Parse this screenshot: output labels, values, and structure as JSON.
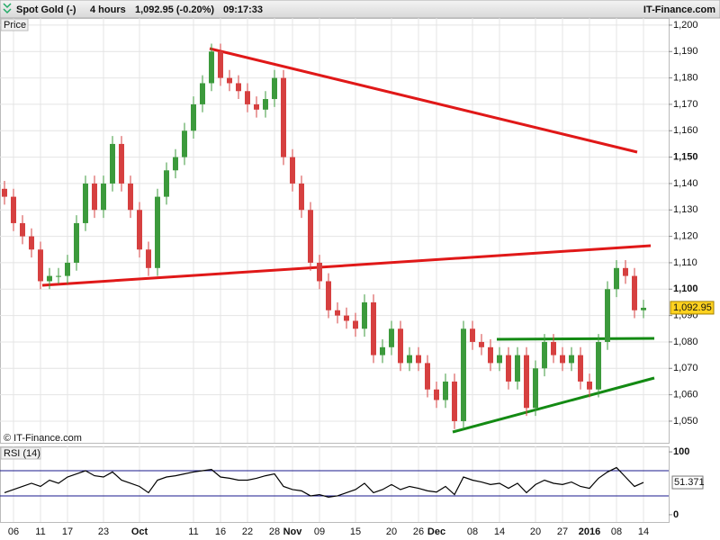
{
  "header": {
    "instrument": "Spot Gold (-)",
    "interval": "4 hours",
    "quote": "1,092.95 (-0.20%)",
    "time": "09:17:33",
    "brand": "IT-Finance.com"
  },
  "chart_data": [
    {
      "type": "candlestick",
      "label": "Price",
      "watermark": "© IT-Finance.com",
      "categories": [
        null,
        "06",
        null,
        null,
        "11",
        null,
        null,
        "17",
        null,
        null,
        null,
        "23",
        null,
        null,
        null,
        "Oct",
        null,
        null,
        null,
        null,
        null,
        "11",
        null,
        null,
        "16",
        null,
        null,
        "22",
        null,
        null,
        "28",
        null,
        "Nov",
        null,
        null,
        "09",
        null,
        null,
        null,
        "15",
        null,
        null,
        null,
        "20",
        null,
        null,
        "26",
        null,
        "Dec",
        null,
        null,
        null,
        "08",
        null,
        null,
        "14",
        null,
        null,
        null,
        "20",
        null,
        null,
        "27",
        null,
        null,
        "2016",
        null,
        null,
        "08",
        null,
        null,
        "14"
      ],
      "open": [
        1138,
        1135,
        1125,
        1120,
        1115,
        1103,
        1105,
        1105,
        1110,
        1125,
        1140,
        1130,
        1140,
        1155,
        1140,
        1130,
        1115,
        1108,
        1135,
        1145,
        1150,
        1160,
        1170,
        1178,
        1190,
        1180,
        1178,
        1175,
        1170,
        1168,
        1172,
        1180,
        1150,
        1140,
        1130,
        1110,
        1103,
        1092,
        1090,
        1088,
        1085,
        1095,
        1075,
        1078,
        1085,
        1072,
        1075,
        1072,
        1062,
        1058,
        1065,
        1050,
        1085,
        1080,
        1078,
        1072,
        1075,
        1065,
        1075,
        1055,
        1070,
        1080,
        1075,
        1072,
        1075,
        1065,
        1062,
        1080,
        1100,
        1108,
        1105,
        1092
      ],
      "high": [
        1141,
        1138,
        1128,
        1123,
        1118,
        1108,
        1108,
        1113,
        1128,
        1143,
        1143,
        1143,
        1158,
        1158,
        1143,
        1133,
        1118,
        1138,
        1148,
        1153,
        1163,
        1173,
        1181,
        1193,
        1193,
        1183,
        1181,
        1178,
        1173,
        1175,
        1183,
        1183,
        1153,
        1143,
        1133,
        1113,
        1106,
        1095,
        1093,
        1091,
        1098,
        1098,
        1081,
        1088,
        1088,
        1078,
        1078,
        1075,
        1065,
        1068,
        1068,
        1088,
        1088,
        1083,
        1081,
        1078,
        1078,
        1078,
        1078,
        1073,
        1083,
        1083,
        1078,
        1078,
        1078,
        1068,
        1083,
        1103,
        1111,
        1111,
        1108,
        1095.95
      ],
      "low": [
        1132,
        1122,
        1117,
        1112,
        1100,
        1100,
        1102,
        1102,
        1107,
        1122,
        1127,
        1127,
        1137,
        1137,
        1127,
        1112,
        1105,
        1105,
        1132,
        1142,
        1147,
        1157,
        1167,
        1175,
        1177,
        1175,
        1172,
        1167,
        1165,
        1165,
        1169,
        1147,
        1137,
        1127,
        1107,
        1100,
        1089,
        1087,
        1085,
        1082,
        1082,
        1072,
        1072,
        1075,
        1069,
        1069,
        1069,
        1059,
        1055,
        1055,
        1047,
        1047,
        1077,
        1075,
        1069,
        1069,
        1062,
        1062,
        1052,
        1052,
        1067,
        1072,
        1069,
        1069,
        1062,
        1059,
        1059,
        1077,
        1097,
        1102,
        1089,
        1089
      ],
      "close": [
        1135,
        1125,
        1120,
        1115,
        1103,
        1105,
        1105,
        1110,
        1125,
        1140,
        1130,
        1140,
        1155,
        1140,
        1130,
        1115,
        1108,
        1135,
        1145,
        1150,
        1160,
        1170,
        1178,
        1190,
        1180,
        1178,
        1175,
        1170,
        1168,
        1172,
        1180,
        1150,
        1140,
        1130,
        1110,
        1103,
        1092,
        1090,
        1088,
        1085,
        1095,
        1075,
        1078,
        1085,
        1072,
        1075,
        1072,
        1062,
        1058,
        1065,
        1050,
        1085,
        1080,
        1078,
        1072,
        1075,
        1065,
        1075,
        1055,
        1070,
        1080,
        1075,
        1072,
        1075,
        1065,
        1062,
        1080,
        1100,
        1108,
        1105,
        1092,
        1092.95
      ],
      "up_color": "#3c9a3c",
      "down_color": "#d64040",
      "last": {
        "value": 1092.95,
        "label": "1,092.95"
      },
      "ylim": [
        1041.8,
        1202.7
      ],
      "yticks": [
        {
          "value": 1050,
          "label": "1,050"
        },
        {
          "value": 1060,
          "label": "1,060"
        },
        {
          "value": 1070,
          "label": "1,070"
        },
        {
          "value": 1080,
          "label": "1,080"
        },
        {
          "value": 1090,
          "label": "1,090"
        },
        {
          "value": 1100,
          "label": "1,100"
        },
        {
          "value": 1110,
          "label": "1,110"
        },
        {
          "value": 1120,
          "label": "1,120"
        },
        {
          "value": 1130,
          "label": "1,130"
        },
        {
          "value": 1140,
          "label": "1,140"
        },
        {
          "value": 1150,
          "label": "1,150"
        },
        {
          "value": 1160,
          "label": "1,160"
        },
        {
          "value": 1170,
          "label": "1,170"
        },
        {
          "value": 1180,
          "label": "1,180"
        },
        {
          "value": 1190,
          "label": "1,190"
        },
        {
          "value": 1200,
          "label": "1,200"
        }
      ],
      "major_ticks": [
        1100,
        1150
      ],
      "grid": true
    },
    {
      "type": "line",
      "label": "RSI (14)",
      "values": [
        35,
        40,
        45,
        50,
        45,
        55,
        50,
        60,
        65,
        70,
        62,
        60,
        68,
        55,
        50,
        45,
        35,
        55,
        60,
        62,
        65,
        68,
        70,
        72,
        60,
        58,
        55,
        55,
        58,
        62,
        65,
        45,
        40,
        38,
        30,
        32,
        28,
        30,
        35,
        40,
        50,
        35,
        40,
        48,
        40,
        45,
        42,
        38,
        36,
        45,
        32,
        60,
        55,
        52,
        48,
        50,
        42,
        50,
        35,
        48,
        55,
        50,
        48,
        52,
        45,
        42,
        58,
        68,
        75,
        60,
        45,
        51.371
      ],
      "color": "#000000",
      "level_color": "#1a1a8c",
      "levels": [
        30,
        70
      ],
      "last": 51.371,
      "ylim": [
        -11.6,
        108.7
      ],
      "yticks": [
        0,
        100
      ]
    }
  ]
}
